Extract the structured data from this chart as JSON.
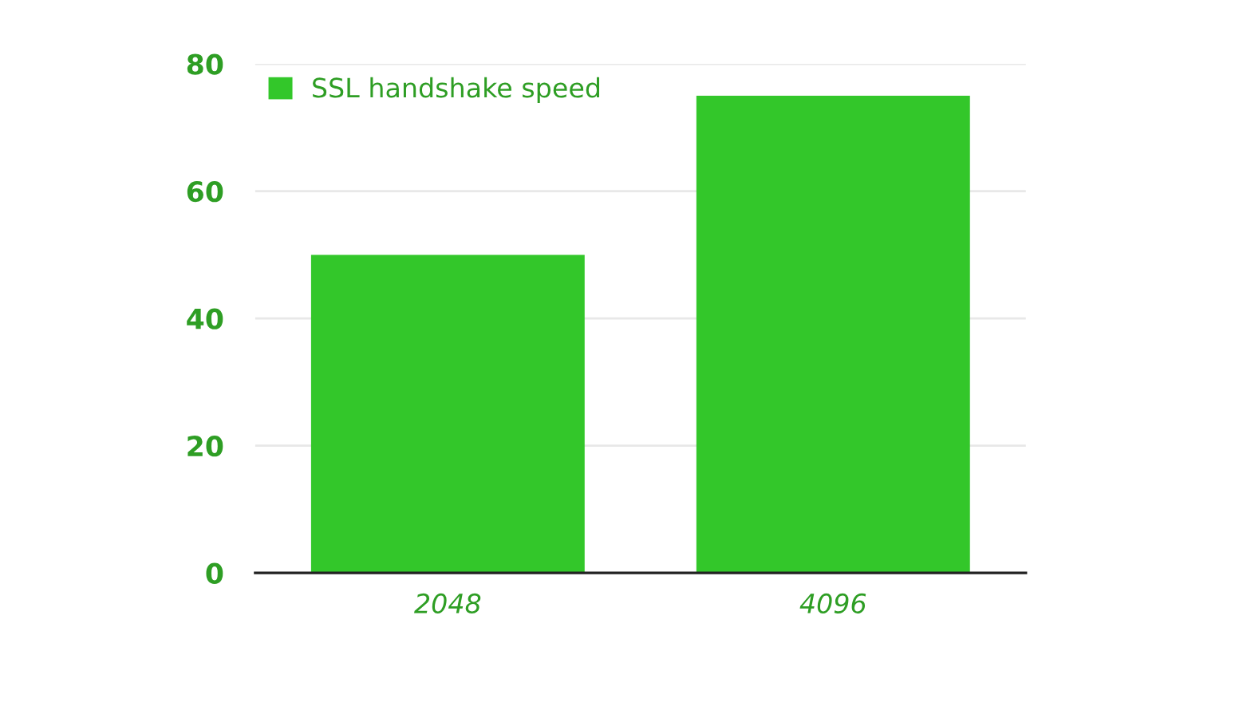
{
  "chart_data": {
    "type": "bar",
    "categories": [
      "2048",
      "4096"
    ],
    "series": [
      {
        "name": "SSL handshake speed",
        "color": "#33c72a",
        "values": [
          50,
          75
        ]
      }
    ],
    "ylim": [
      0,
      80
    ],
    "yticks": [
      0,
      20,
      40,
      60,
      80
    ],
    "grid": "y",
    "legend": "top left"
  }
}
